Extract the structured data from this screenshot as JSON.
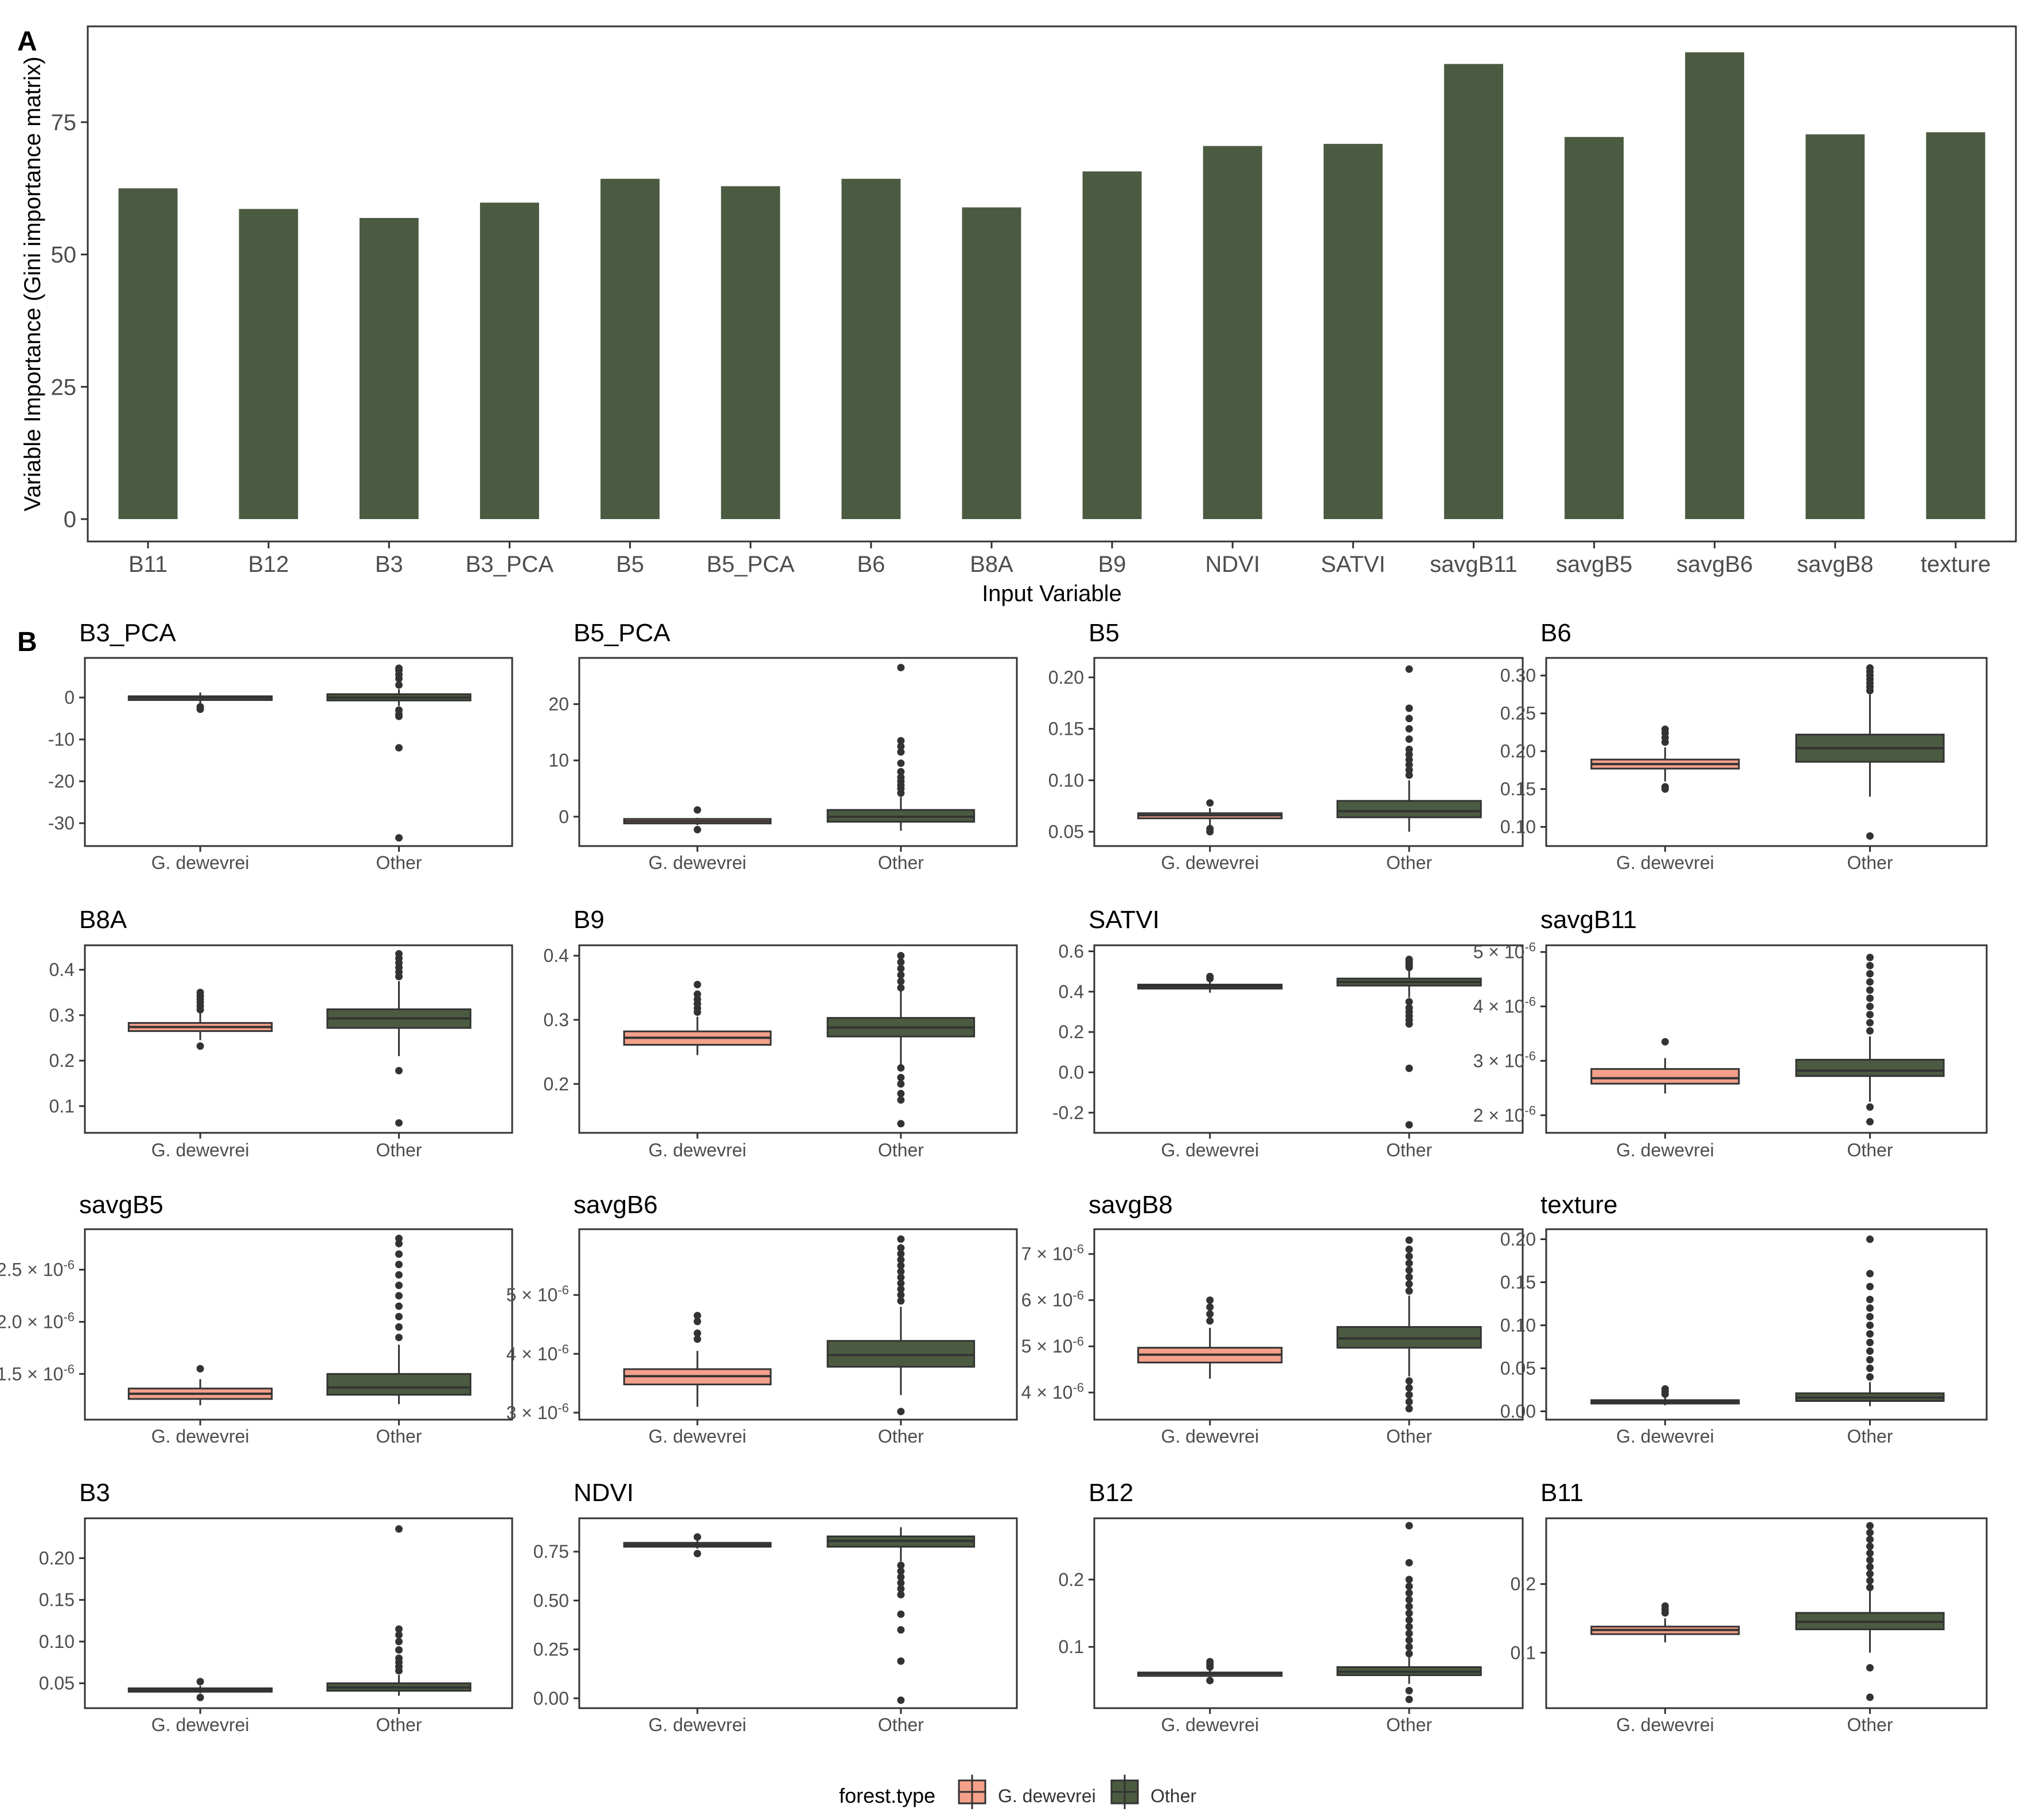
{
  "colors": {
    "other": "#4b5b41",
    "gdew": "#f4a08a",
    "ink": "#333333",
    "frame": "#333333",
    "axis_text": "#4d4d4d"
  },
  "panel_labels": {
    "a": "A",
    "b": "B"
  },
  "legend": {
    "title": "forest.type",
    "items": [
      "G. dewevrei",
      "Other"
    ]
  },
  "chart_data": [
    {
      "id": "A",
      "type": "bar",
      "xlabel": "Input Variable",
      "ylabel": "Variable Importance (Gini importance matrix)",
      "ylim": [
        0,
        92
      ],
      "yticks": [
        0,
        25,
        50,
        75
      ],
      "categories": [
        "B11",
        "B12",
        "B3",
        "B3_PCA",
        "B5",
        "B5_PCA",
        "B6",
        "B8A",
        "B9",
        "NDVI",
        "SATVI",
        "savgB11",
        "savgB5",
        "savgB6",
        "savgB8",
        "texture"
      ],
      "values": [
        62.5,
        58.6,
        56.9,
        59.8,
        64.3,
        62.9,
        64.3,
        58.9,
        65.7,
        70.5,
        70.9,
        86.0,
        72.2,
        88.2,
        72.7,
        73.1
      ]
    },
    {
      "type": "boxplot",
      "title": "B3_PCA",
      "ylim": [
        -34.5,
        8.5
      ],
      "yticks": [
        {
          "v": 0,
          "t": "0"
        },
        {
          "v": -10,
          "t": "-10"
        },
        {
          "v": -20,
          "t": "-20"
        },
        {
          "v": -30,
          "t": "-30"
        }
      ],
      "categories": [
        "G. dewevrei",
        "Other"
      ],
      "boxes": [
        {
          "q1": -0.6,
          "med": -0.1,
          "q3": 0.3,
          "wlo": -1.5,
          "whi": 1.2,
          "out": [
            -2.2,
            -2.8
          ]
        },
        {
          "q1": -0.7,
          "med": 0.0,
          "q3": 0.8,
          "wlo": -2.0,
          "whi": 2.0,
          "out": [
            3.0,
            4.5,
            5.5,
            6.5,
            7.0,
            -3.0,
            -4.0,
            -4.5,
            -12.0,
            -33.5
          ]
        }
      ]
    },
    {
      "type": "boxplot",
      "title": "B5_PCA",
      "ylim": [
        -4.5,
        27.5
      ],
      "yticks": [
        {
          "v": 0,
          "t": "0"
        },
        {
          "v": 10,
          "t": "10"
        },
        {
          "v": 20,
          "t": "20"
        }
      ],
      "categories": [
        "G. dewevrei",
        "Other"
      ],
      "boxes": [
        {
          "q1": -1.2,
          "med": -0.8,
          "q3": -0.4,
          "wlo": -1.5,
          "whi": -0.2,
          "out": [
            1.2,
            -2.3
          ]
        },
        {
          "q1": -0.9,
          "med": 0.0,
          "q3": 1.2,
          "wlo": -2.5,
          "whi": 3.5,
          "out": [
            4.2,
            5.0,
            5.6,
            6.3,
            7.0,
            8.0,
            9.5,
            11.5,
            12.5,
            13.5,
            26.5
          ]
        }
      ]
    },
    {
      "type": "boxplot",
      "title": "B5",
      "ylim": [
        0.04,
        0.215
      ],
      "yticks": [
        {
          "v": 0.05,
          "t": "0.05"
        },
        {
          "v": 0.1,
          "t": "0.10"
        },
        {
          "v": 0.15,
          "t": "0.15"
        },
        {
          "v": 0.2,
          "t": "0.20"
        }
      ],
      "categories": [
        "G. dewevrei",
        "Other"
      ],
      "boxes": [
        {
          "q1": 0.063,
          "med": 0.066,
          "q3": 0.068,
          "wlo": 0.056,
          "whi": 0.073,
          "out": [
            0.078,
            0.053,
            0.05
          ]
        },
        {
          "q1": 0.064,
          "med": 0.07,
          "q3": 0.08,
          "wlo": 0.05,
          "whi": 0.1,
          "out": [
            0.105,
            0.11,
            0.115,
            0.12,
            0.125,
            0.13,
            0.14,
            0.15,
            0.16,
            0.17,
            0.208
          ]
        }
      ]
    },
    {
      "type": "boxplot",
      "title": "B6",
      "ylim": [
        0.08,
        0.318
      ],
      "yticks": [
        {
          "v": 0.1,
          "t": "0.10"
        },
        {
          "v": 0.15,
          "t": "0.15"
        },
        {
          "v": 0.2,
          "t": "0.20"
        },
        {
          "v": 0.25,
          "t": "0.25"
        },
        {
          "v": 0.3,
          "t": "0.30"
        }
      ],
      "categories": [
        "G. dewevrei",
        "Other"
      ],
      "boxes": [
        {
          "q1": 0.177,
          "med": 0.183,
          "q3": 0.189,
          "wlo": 0.16,
          "whi": 0.205,
          "out": [
            0.212,
            0.218,
            0.224,
            0.229,
            0.153,
            0.15
          ]
        },
        {
          "q1": 0.186,
          "med": 0.204,
          "q3": 0.222,
          "wlo": 0.14,
          "whi": 0.275,
          "out": [
            0.28,
            0.285,
            0.29,
            0.295,
            0.3,
            0.305,
            0.31,
            0.088
          ]
        }
      ]
    },
    {
      "type": "boxplot",
      "title": "B8A",
      "ylim": [
        0.05,
        0.445
      ],
      "yticks": [
        {
          "v": 0.1,
          "t": "0.1"
        },
        {
          "v": 0.2,
          "t": "0.2"
        },
        {
          "v": 0.3,
          "t": "0.3"
        },
        {
          "v": 0.4,
          "t": "0.4"
        }
      ],
      "categories": [
        "G. dewevrei",
        "Other"
      ],
      "boxes": [
        {
          "q1": 0.265,
          "med": 0.274,
          "q3": 0.283,
          "wlo": 0.245,
          "whi": 0.305,
          "out": [
            0.312,
            0.32,
            0.328,
            0.335,
            0.342,
            0.35,
            0.232
          ]
        },
        {
          "q1": 0.272,
          "med": 0.293,
          "q3": 0.313,
          "wlo": 0.21,
          "whi": 0.375,
          "out": [
            0.385,
            0.395,
            0.405,
            0.415,
            0.425,
            0.435,
            0.178,
            0.063
          ]
        }
      ]
    },
    {
      "type": "boxplot",
      "title": "B9",
      "ylim": [
        0.13,
        0.41
      ],
      "yticks": [
        {
          "v": 0.2,
          "t": "0.2"
        },
        {
          "v": 0.3,
          "t": "0.3"
        },
        {
          "v": 0.4,
          "t": "0.4"
        }
      ],
      "categories": [
        "G. dewevrei",
        "Other"
      ],
      "boxes": [
        {
          "q1": 0.261,
          "med": 0.272,
          "q3": 0.282,
          "wlo": 0.245,
          "whi": 0.305,
          "out": [
            0.312,
            0.318,
            0.325,
            0.332,
            0.34,
            0.355
          ]
        },
        {
          "q1": 0.274,
          "med": 0.288,
          "q3": 0.303,
          "wlo": 0.23,
          "whi": 0.345,
          "out": [
            0.35,
            0.36,
            0.37,
            0.38,
            0.39,
            0.4,
            0.225,
            0.21,
            0.2,
            0.185,
            0.175,
            0.138
          ]
        }
      ]
    },
    {
      "type": "boxplot",
      "title": "SATVI",
      "ylim": [
        -0.28,
        0.61
      ],
      "yticks": [
        {
          "v": -0.2,
          "t": "-0.2"
        },
        {
          "v": 0.0,
          "t": "0.0"
        },
        {
          "v": 0.2,
          "t": "0.2"
        },
        {
          "v": 0.4,
          "t": "0.4"
        },
        {
          "v": 0.6,
          "t": "0.6"
        }
      ],
      "categories": [
        "G. dewevrei",
        "Other"
      ],
      "boxes": [
        {
          "q1": 0.415,
          "med": 0.425,
          "q3": 0.435,
          "wlo": 0.395,
          "whi": 0.455,
          "out": [
            0.465,
            0.475
          ]
        },
        {
          "q1": 0.43,
          "med": 0.448,
          "q3": 0.465,
          "wlo": 0.37,
          "whi": 0.51,
          "out": [
            0.52,
            0.53,
            0.54,
            0.55,
            0.56,
            0.35,
            0.32,
            0.3,
            0.28,
            0.26,
            0.24,
            0.02,
            -0.26
          ]
        }
      ]
    },
    {
      "type": "boxplot",
      "title": "savgB11",
      "ylim": [
        1.75,
        5.05
      ],
      "yticks": [
        {
          "v": 2,
          "t": "2 × 10",
          "e": "-6"
        },
        {
          "v": 3,
          "t": "3 × 10",
          "e": "-6"
        },
        {
          "v": 4,
          "t": "4 × 10",
          "e": "-6"
        },
        {
          "v": 5,
          "t": "5 × 10",
          "e": "-6"
        }
      ],
      "categories": [
        "G. dewevrei",
        "Other"
      ],
      "boxes": [
        {
          "q1": 2.58,
          "med": 2.68,
          "q3": 2.85,
          "wlo": 2.4,
          "whi": 3.05,
          "out": [
            3.35
          ]
        },
        {
          "q1": 2.72,
          "med": 2.82,
          "q3": 3.02,
          "wlo": 2.25,
          "whi": 3.45,
          "out": [
            3.55,
            3.7,
            3.85,
            4.0,
            4.15,
            4.3,
            4.45,
            4.6,
            4.75,
            4.9,
            2.15,
            1.88
          ]
        }
      ]
    },
    {
      "type": "boxplot",
      "title": "savgB5",
      "ylim": [
        1.1,
        2.85
      ],
      "yticks": [
        {
          "v": 1.5,
          "t": "1.5 × 10",
          "e": "-6"
        },
        {
          "v": 2.0,
          "t": "2.0 × 10",
          "e": "-6"
        },
        {
          "v": 2.5,
          "t": "2.5 × 10",
          "e": "-6"
        }
      ],
      "categories": [
        "G. dewevrei",
        "Other"
      ],
      "boxes": [
        {
          "q1": 1.26,
          "med": 1.31,
          "q3": 1.36,
          "wlo": 1.2,
          "whi": 1.45,
          "out": [
            1.55
          ]
        },
        {
          "q1": 1.3,
          "med": 1.37,
          "q3": 1.5,
          "wlo": 1.21,
          "whi": 1.78,
          "out": [
            1.85,
            1.95,
            2.05,
            2.15,
            2.25,
            2.35,
            2.45,
            2.55,
            2.65,
            2.75,
            2.8
          ]
        }
      ]
    },
    {
      "type": "boxplot",
      "title": "savgB6",
      "ylim": [
        2.95,
        6.05
      ],
      "yticks": [
        {
          "v": 3,
          "t": "3 × 10",
          "e": "-6"
        },
        {
          "v": 4,
          "t": "4 × 10",
          "e": "-6"
        },
        {
          "v": 5,
          "t": "5 × 10",
          "e": "-6"
        }
      ],
      "categories": [
        "G. dewevrei",
        "Other"
      ],
      "boxes": [
        {
          "q1": 3.48,
          "med": 3.62,
          "q3": 3.74,
          "wlo": 3.1,
          "whi": 4.05,
          "out": [
            4.25,
            4.35,
            4.55,
            4.65
          ]
        },
        {
          "q1": 3.78,
          "med": 3.98,
          "q3": 4.22,
          "wlo": 3.3,
          "whi": 4.8,
          "out": [
            4.9,
            5.0,
            5.1,
            5.2,
            5.3,
            5.4,
            5.5,
            5.6,
            5.7,
            5.8,
            5.95,
            3.02
          ]
        }
      ]
    },
    {
      "type": "boxplot",
      "title": "savgB8",
      "ylim": [
        3.5,
        7.45
      ],
      "yticks": [
        {
          "v": 4,
          "t": "4 × 10",
          "e": "-6"
        },
        {
          "v": 5,
          "t": "5 × 10",
          "e": "-6"
        },
        {
          "v": 6,
          "t": "6 × 10",
          "e": "-6"
        },
        {
          "v": 7,
          "t": "7 × 10",
          "e": "-6"
        }
      ],
      "categories": [
        "G. dewevrei",
        "Other"
      ],
      "boxes": [
        {
          "q1": 4.65,
          "med": 4.82,
          "q3": 4.97,
          "wlo": 4.3,
          "whi": 5.4,
          "out": [
            5.55,
            5.7,
            5.85,
            6.0
          ]
        },
        {
          "q1": 4.97,
          "med": 5.17,
          "q3": 5.42,
          "wlo": 4.35,
          "whi": 6.1,
          "out": [
            6.2,
            6.35,
            6.5,
            6.65,
            6.8,
            6.95,
            7.1,
            7.3,
            4.25,
            4.1,
            3.95,
            3.8,
            3.65
          ]
        }
      ]
    },
    {
      "type": "boxplot",
      "title": "texture",
      "ylim": [
        -0.005,
        0.207
      ],
      "yticks": [
        {
          "v": 0.0,
          "t": "0.00"
        },
        {
          "v": 0.05,
          "t": "0.05"
        },
        {
          "v": 0.1,
          "t": "0.10"
        },
        {
          "v": 0.15,
          "t": "0.15"
        },
        {
          "v": 0.2,
          "t": "0.20"
        }
      ],
      "categories": [
        "G. dewevrei",
        "Other"
      ],
      "boxes": [
        {
          "q1": 0.009,
          "med": 0.011,
          "q3": 0.013,
          "wlo": 0.007,
          "whi": 0.016,
          "out": [
            0.02,
            0.023,
            0.026
          ]
        },
        {
          "q1": 0.012,
          "med": 0.016,
          "q3": 0.021,
          "wlo": 0.006,
          "whi": 0.034,
          "out": [
            0.04,
            0.05,
            0.06,
            0.07,
            0.08,
            0.09,
            0.1,
            0.11,
            0.12,
            0.13,
            0.145,
            0.16,
            0.2
          ]
        }
      ]
    },
    {
      "type": "boxplot",
      "title": "B3",
      "ylim": [
        0.025,
        0.243
      ],
      "yticks": [
        {
          "v": 0.05,
          "t": "0.05"
        },
        {
          "v": 0.1,
          "t": "0.10"
        },
        {
          "v": 0.15,
          "t": "0.15"
        },
        {
          "v": 0.2,
          "t": "0.20"
        }
      ],
      "categories": [
        "G. dewevrei",
        "Other"
      ],
      "boxes": [
        {
          "q1": 0.04,
          "med": 0.042,
          "q3": 0.044,
          "wlo": 0.038,
          "whi": 0.047,
          "out": [
            0.052,
            0.033
          ]
        },
        {
          "q1": 0.041,
          "med": 0.045,
          "q3": 0.05,
          "wlo": 0.035,
          "whi": 0.06,
          "out": [
            0.065,
            0.07,
            0.075,
            0.08,
            0.09,
            0.1,
            0.108,
            0.115,
            0.235
          ]
        }
      ]
    },
    {
      "type": "boxplot",
      "title": "NDVI",
      "ylim": [
        -0.03,
        0.9
      ],
      "yticks": [
        {
          "v": 0.0,
          "t": "0.00"
        },
        {
          "v": 0.25,
          "t": "0.25"
        },
        {
          "v": 0.5,
          "t": "0.50"
        },
        {
          "v": 0.75,
          "t": "0.75"
        }
      ],
      "categories": [
        "G. dewevrei",
        "Other"
      ],
      "boxes": [
        {
          "q1": 0.775,
          "med": 0.785,
          "q3": 0.795,
          "wlo": 0.765,
          "whi": 0.808,
          "out": [
            0.825,
            0.74
          ]
        },
        {
          "q1": 0.775,
          "med": 0.805,
          "q3": 0.828,
          "wlo": 0.7,
          "whi": 0.875,
          "out": [
            0.68,
            0.65,
            0.62,
            0.59,
            0.56,
            0.53,
            0.43,
            0.35,
            0.19,
            -0.01
          ]
        }
      ]
    },
    {
      "type": "boxplot",
      "title": "B12",
      "ylim": [
        0.015,
        0.285
      ],
      "yticks": [
        {
          "v": 0.1,
          "t": "0.1"
        },
        {
          "v": 0.2,
          "t": "0.2"
        }
      ],
      "categories": [
        "G. dewevrei",
        "Other"
      ],
      "boxes": [
        {
          "q1": 0.058,
          "med": 0.06,
          "q3": 0.062,
          "wlo": 0.055,
          "whi": 0.066,
          "out": [
            0.07,
            0.074,
            0.078,
            0.05
          ]
        },
        {
          "q1": 0.058,
          "med": 0.063,
          "q3": 0.07,
          "wlo": 0.045,
          "whi": 0.085,
          "out": [
            0.09,
            0.1,
            0.11,
            0.12,
            0.13,
            0.14,
            0.15,
            0.16,
            0.17,
            0.18,
            0.19,
            0.2,
            0.225,
            0.28,
            0.035,
            0.022
          ]
        }
      ]
    },
    {
      "type": "boxplot",
      "title": "B11",
      "ylim": [
        0.025,
        0.29
      ],
      "yticks": [
        {
          "v": 0.1,
          "t": "0.1"
        },
        {
          "v": 0.2,
          "t": "0.2"
        }
      ],
      "categories": [
        "G. dewevrei",
        "Other"
      ],
      "boxes": [
        {
          "q1": 0.127,
          "med": 0.133,
          "q3": 0.138,
          "wlo": 0.115,
          "whi": 0.15,
          "out": [
            0.158,
            0.163,
            0.168
          ]
        },
        {
          "q1": 0.134,
          "med": 0.145,
          "q3": 0.158,
          "wlo": 0.1,
          "whi": 0.19,
          "out": [
            0.195,
            0.205,
            0.215,
            0.225,
            0.235,
            0.245,
            0.255,
            0.265,
            0.275,
            0.285,
            0.078,
            0.035
          ]
        }
      ]
    }
  ]
}
